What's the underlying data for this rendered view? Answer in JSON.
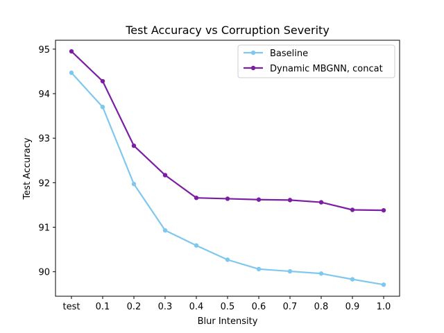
{
  "chart_data": {
    "type": "line",
    "title": "Test Accuracy vs Corruption Severity",
    "xlabel": "Blur Intensity",
    "ylabel": "Test Accuracy",
    "categories": [
      "test",
      "0.1",
      "0.2",
      "0.3",
      "0.4",
      "0.5",
      "0.6",
      "0.7",
      "0.8",
      "0.9",
      "1.0"
    ],
    "ylim": [
      89.45,
      95.2
    ],
    "yticks": [
      90,
      91,
      92,
      93,
      94,
      95
    ],
    "grid": false,
    "legend_position": "top-right",
    "series": [
      {
        "name": "Baseline",
        "color": "#7ec8f0",
        "values": [
          94.47,
          93.7,
          91.97,
          90.93,
          90.59,
          90.27,
          90.06,
          90.01,
          89.96,
          89.83,
          89.71
        ]
      },
      {
        "name": "Dynamic MBGNN, concat",
        "color": "#7b1fa2",
        "values": [
          94.95,
          94.28,
          92.83,
          92.17,
          91.66,
          91.64,
          91.62,
          91.61,
          91.56,
          91.39,
          91.38
        ]
      }
    ]
  }
}
